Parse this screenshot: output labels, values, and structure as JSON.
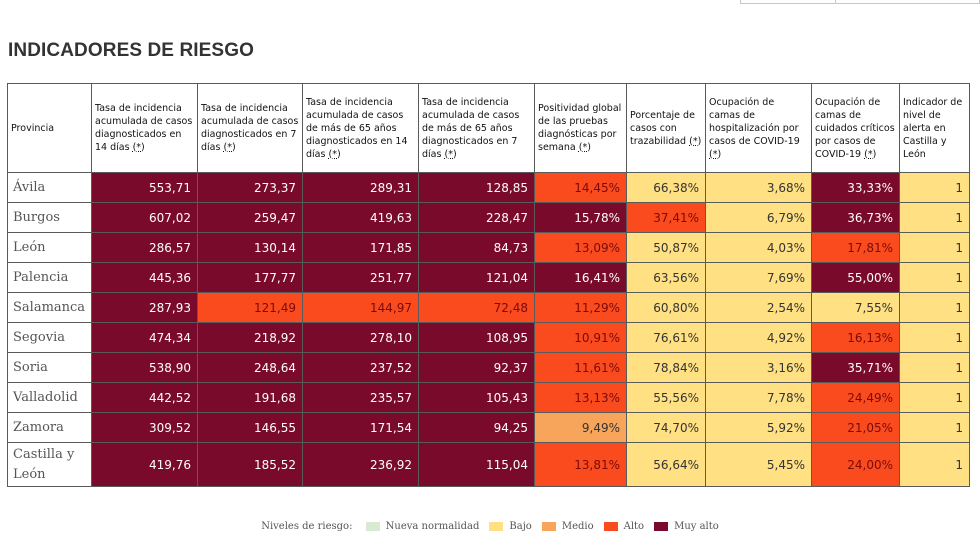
{
  "title": "INDICADORES DE RIESGO",
  "colors": {
    "nueva": "#d9ead3",
    "bajo": "#ffe083",
    "medio": "#f6a55a",
    "alto": "#fa4b1e",
    "muyalto": "#7a0a2b"
  },
  "text_colors": {
    "nueva": "#333333",
    "bajo": "#333333",
    "medio": "#333333",
    "alto": "#7a0a0a",
    "muyalto": "#ffffff"
  },
  "columns": [
    {
      "label": "Provincia",
      "ast": ""
    },
    {
      "label": "Tasa de incidencia acumulada de casos diagnosticados en 14 días",
      "ast": "(*)"
    },
    {
      "label": "Tasa de incidencia acumulada de casos diagnosticados en 7 días",
      "ast": "(*)"
    },
    {
      "label": "Tasa de incidencia acumulada de casos de más de 65 años diagnosticados en 14 días",
      "ast": "(*)"
    },
    {
      "label": "Tasa de incidencia acumulada de casos de más de 65 años diagnosticados en 7 días",
      "ast": "(*)"
    },
    {
      "label": "Positividad global de las pruebas diagnósticas por semana",
      "ast": "(*)"
    },
    {
      "label": "Porcentaje de casos con trazabilidad",
      "ast": "(*)"
    },
    {
      "label": "Ocupación de camas de hospitalización por casos de COVID-19",
      "ast": "(*)"
    },
    {
      "label": "Ocupación de camas de cuidados críticos por casos de COVID-19",
      "ast": "(*)"
    },
    {
      "label": "Indicador de nivel de alerta en Castilla y León",
      "ast": ""
    }
  ],
  "rows": [
    {
      "provincia": "Ávila",
      "cells": [
        {
          "v": "553,71",
          "l": "muyalto"
        },
        {
          "v": "273,37",
          "l": "muyalto"
        },
        {
          "v": "289,31",
          "l": "muyalto"
        },
        {
          "v": "128,85",
          "l": "muyalto"
        },
        {
          "v": "14,45%",
          "l": "alto"
        },
        {
          "v": "66,38%",
          "l": "bajo"
        },
        {
          "v": "3,68%",
          "l": "bajo"
        },
        {
          "v": "33,33%",
          "l": "muyalto"
        },
        {
          "v": "1",
          "l": "bajo"
        }
      ]
    },
    {
      "provincia": "Burgos",
      "cells": [
        {
          "v": "607,02",
          "l": "muyalto"
        },
        {
          "v": "259,47",
          "l": "muyalto"
        },
        {
          "v": "419,63",
          "l": "muyalto"
        },
        {
          "v": "228,47",
          "l": "muyalto"
        },
        {
          "v": "15,78%",
          "l": "muyalto"
        },
        {
          "v": "37,41%",
          "l": "alto"
        },
        {
          "v": "6,79%",
          "l": "bajo"
        },
        {
          "v": "36,73%",
          "l": "muyalto"
        },
        {
          "v": "1",
          "l": "bajo"
        }
      ]
    },
    {
      "provincia": "León",
      "cells": [
        {
          "v": "286,57",
          "l": "muyalto"
        },
        {
          "v": "130,14",
          "l": "muyalto"
        },
        {
          "v": "171,85",
          "l": "muyalto"
        },
        {
          "v": "84,73",
          "l": "muyalto"
        },
        {
          "v": "13,09%",
          "l": "alto"
        },
        {
          "v": "50,87%",
          "l": "bajo"
        },
        {
          "v": "4,03%",
          "l": "bajo"
        },
        {
          "v": "17,81%",
          "l": "alto"
        },
        {
          "v": "1",
          "l": "bajo"
        }
      ]
    },
    {
      "provincia": "Palencia",
      "cells": [
        {
          "v": "445,36",
          "l": "muyalto"
        },
        {
          "v": "177,77",
          "l": "muyalto"
        },
        {
          "v": "251,77",
          "l": "muyalto"
        },
        {
          "v": "121,04",
          "l": "muyalto"
        },
        {
          "v": "16,41%",
          "l": "muyalto"
        },
        {
          "v": "63,56%",
          "l": "bajo"
        },
        {
          "v": "7,69%",
          "l": "bajo"
        },
        {
          "v": "55,00%",
          "l": "muyalto"
        },
        {
          "v": "1",
          "l": "bajo"
        }
      ]
    },
    {
      "provincia": "Salamanca",
      "cells": [
        {
          "v": "287,93",
          "l": "muyalto"
        },
        {
          "v": "121,49",
          "l": "alto"
        },
        {
          "v": "144,97",
          "l": "alto"
        },
        {
          "v": "72,48",
          "l": "alto"
        },
        {
          "v": "11,29%",
          "l": "alto"
        },
        {
          "v": "60,80%",
          "l": "bajo"
        },
        {
          "v": "2,54%",
          "l": "bajo"
        },
        {
          "v": "7,55%",
          "l": "bajo"
        },
        {
          "v": "1",
          "l": "bajo"
        }
      ]
    },
    {
      "provincia": "Segovia",
      "cells": [
        {
          "v": "474,34",
          "l": "muyalto"
        },
        {
          "v": "218,92",
          "l": "muyalto"
        },
        {
          "v": "278,10",
          "l": "muyalto"
        },
        {
          "v": "108,95",
          "l": "muyalto"
        },
        {
          "v": "10,91%",
          "l": "alto"
        },
        {
          "v": "76,61%",
          "l": "bajo"
        },
        {
          "v": "4,92%",
          "l": "bajo"
        },
        {
          "v": "16,13%",
          "l": "alto"
        },
        {
          "v": "1",
          "l": "bajo"
        }
      ]
    },
    {
      "provincia": "Soria",
      "cells": [
        {
          "v": "538,90",
          "l": "muyalto"
        },
        {
          "v": "248,64",
          "l": "muyalto"
        },
        {
          "v": "237,52",
          "l": "muyalto"
        },
        {
          "v": "92,37",
          "l": "muyalto"
        },
        {
          "v": "11,61%",
          "l": "alto"
        },
        {
          "v": "78,84%",
          "l": "bajo"
        },
        {
          "v": "3,16%",
          "l": "bajo"
        },
        {
          "v": "35,71%",
          "l": "muyalto"
        },
        {
          "v": "1",
          "l": "bajo"
        }
      ]
    },
    {
      "provincia": "Valladolid",
      "cells": [
        {
          "v": "442,52",
          "l": "muyalto"
        },
        {
          "v": "191,68",
          "l": "muyalto"
        },
        {
          "v": "235,57",
          "l": "muyalto"
        },
        {
          "v": "105,43",
          "l": "muyalto"
        },
        {
          "v": "13,13%",
          "l": "alto"
        },
        {
          "v": "55,56%",
          "l": "bajo"
        },
        {
          "v": "7,78%",
          "l": "bajo"
        },
        {
          "v": "24,49%",
          "l": "alto"
        },
        {
          "v": "1",
          "l": "bajo"
        }
      ]
    },
    {
      "provincia": "Zamora",
      "cells": [
        {
          "v": "309,52",
          "l": "muyalto"
        },
        {
          "v": "146,55",
          "l": "muyalto"
        },
        {
          "v": "171,54",
          "l": "muyalto"
        },
        {
          "v": "94,25",
          "l": "muyalto"
        },
        {
          "v": "9,49%",
          "l": "medio"
        },
        {
          "v": "74,70%",
          "l": "bajo"
        },
        {
          "v": "5,92%",
          "l": "bajo"
        },
        {
          "v": "21,05%",
          "l": "alto"
        },
        {
          "v": "1",
          "l": "bajo"
        }
      ]
    },
    {
      "provincia": "Castilla y León",
      "cells": [
        {
          "v": "419,76",
          "l": "muyalto"
        },
        {
          "v": "185,52",
          "l": "muyalto"
        },
        {
          "v": "236,92",
          "l": "muyalto"
        },
        {
          "v": "115,04",
          "l": "muyalto"
        },
        {
          "v": "13,81%",
          "l": "alto"
        },
        {
          "v": "56,64%",
          "l": "bajo"
        },
        {
          "v": "5,45%",
          "l": "bajo"
        },
        {
          "v": "24,00%",
          "l": "alto"
        },
        {
          "v": "1",
          "l": "bajo"
        }
      ]
    }
  ],
  "legend": {
    "title": "Niveles de riesgo:",
    "items": [
      {
        "label": "Nueva normalidad",
        "level": "nueva"
      },
      {
        "label": "Bajo",
        "level": "bajo"
      },
      {
        "label": "Medio",
        "level": "medio"
      },
      {
        "label": "Alto",
        "level": "alto"
      },
      {
        "label": "Muy alto",
        "level": "muyalto"
      }
    ]
  }
}
